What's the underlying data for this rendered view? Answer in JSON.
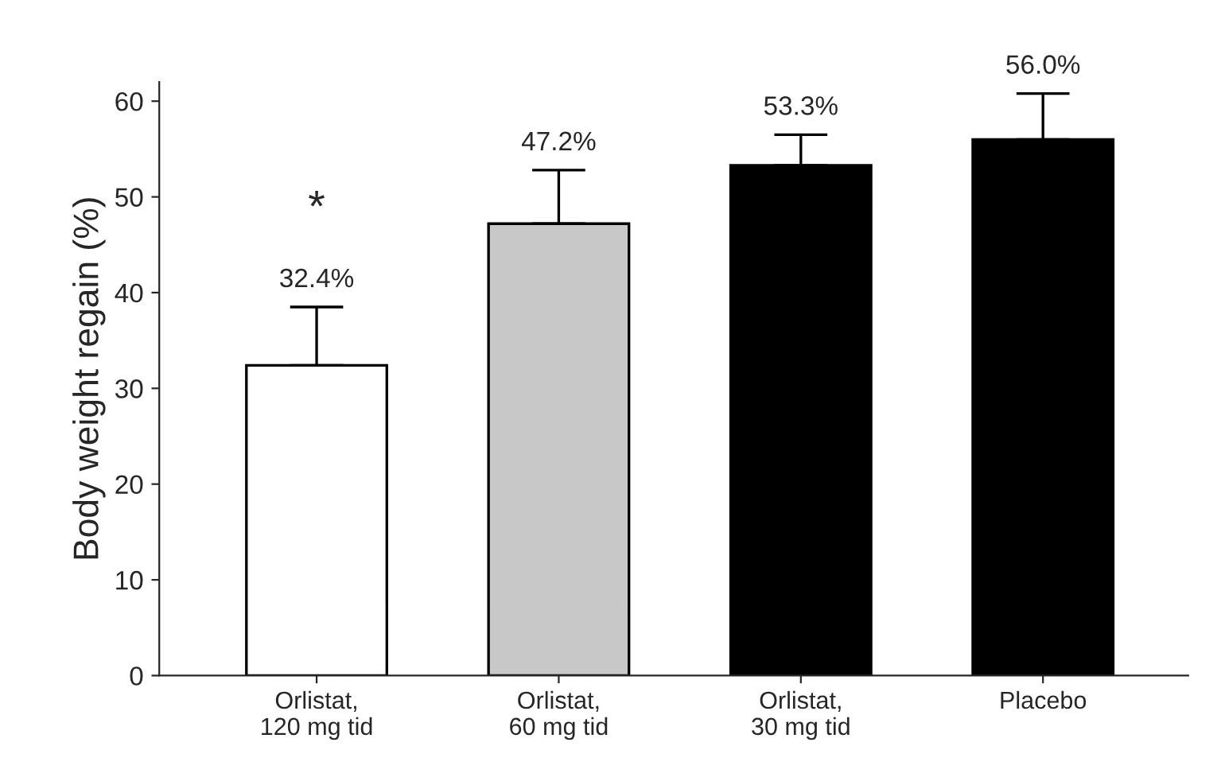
{
  "chart_data": {
    "type": "bar",
    "ylabel": "Body weight regain (%)",
    "categories": [
      "Orlistat,\n120 mg tid",
      "Orlistat,\n60 mg tid",
      "Orlistat,\n30 mg tid",
      "Placebo"
    ],
    "values": [
      32.4,
      47.2,
      53.3,
      56.0
    ],
    "colors": [
      "#ffffff",
      "#c8c8c8",
      "#000000",
      "#000000"
    ],
    "errors": [
      [
        32.4,
        38.5
      ],
      [
        47.2,
        52.8
      ],
      [
        53.3,
        56.5
      ],
      [
        56.0,
        60.8
      ]
    ],
    "value_labels": [
      "32.4%",
      "47.2%",
      "53.3%",
      "56.0%"
    ],
    "annotations": [
      "*"
    ],
    "ylim": [
      0,
      62
    ],
    "yticks": [
      0,
      10,
      20,
      30,
      40,
      50,
      60
    ],
    "grid": false
  }
}
